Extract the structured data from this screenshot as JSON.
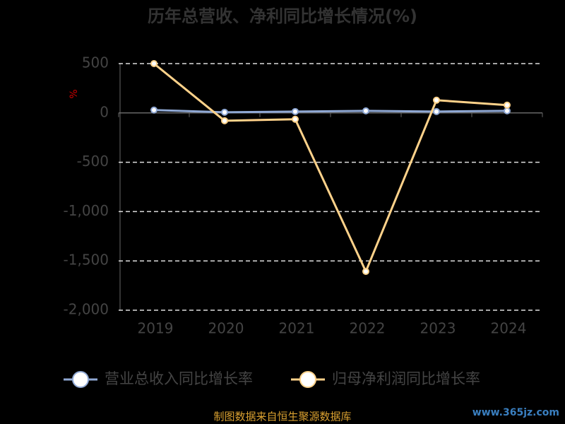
{
  "chart_data": {
    "type": "line",
    "title": "历年总营收、净利同比增长情况(%)",
    "y_label": "%",
    "categories": [
      "2019",
      "2020",
      "2021",
      "2022",
      "2023",
      "2024"
    ],
    "series": [
      {
        "name": "营业总收入同比增长率",
        "color": "#8fa8d4",
        "values": [
          29,
          7,
          14,
          21,
          14,
          21
        ]
      },
      {
        "name": "归母净利润同比增长率",
        "color": "#ffd28a",
        "values": [
          500,
          -79,
          -64,
          -1607,
          129,
          79
        ]
      }
    ],
    "ylim": [
      -2000,
      500
    ],
    "yticks": [
      500,
      0,
      {
        "value": -500,
        "label": "-500"
      },
      {
        "value": -1000,
        "label": "-1,000"
      },
      {
        "value": -1500,
        "label": "-1,500"
      },
      {
        "value": -2000,
        "label": "-2,000"
      }
    ],
    "grid": true,
    "source": "制图数据来自恒生聚源数据库",
    "watermark": "www.365jz.com"
  }
}
